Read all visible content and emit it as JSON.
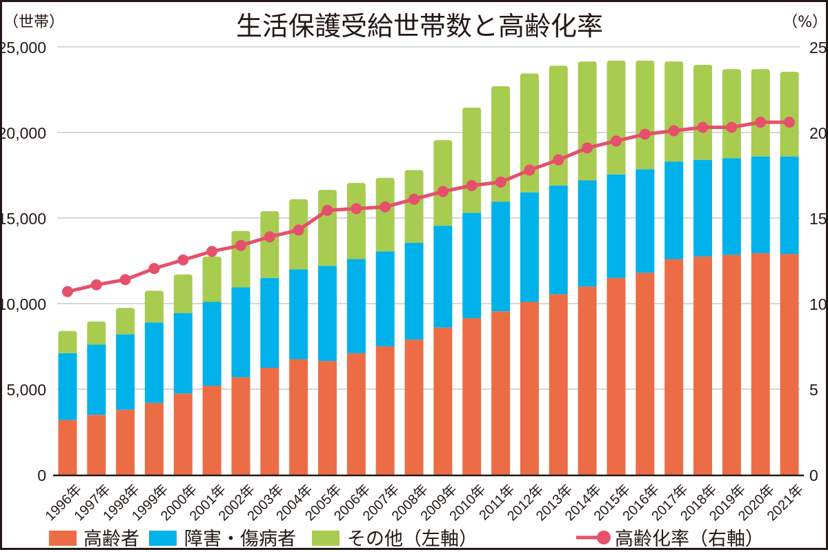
{
  "chart_data": {
    "type": "bar",
    "stacked": true,
    "title": "生活保護受給世帯数と高齢化率",
    "ylabel": "（世帯）",
    "y2label": "（%）",
    "ylim": [
      0,
      25000
    ],
    "y2lim": [
      0,
      25
    ],
    "yticks": [
      0,
      5000,
      10000,
      15000,
      20000,
      25000
    ],
    "ytick_labels": [
      "0",
      "5,000",
      "10,000",
      "15,000",
      "20,000",
      "25,000"
    ],
    "y2ticks": [
      0,
      5,
      10,
      15,
      20,
      25
    ],
    "y2tick_labels": [
      "0",
      "5",
      "10",
      "15",
      "20",
      "25"
    ],
    "grid": true,
    "legend_position": "bottom",
    "categories": [
      "1996年",
      "1997年",
      "1998年",
      "1999年",
      "2000年",
      "2001年",
      "2002年",
      "2003年",
      "2004年",
      "2005年",
      "2006年",
      "2007年",
      "2008年",
      "2009年",
      "2010年",
      "2011年",
      "2012年",
      "2013年",
      "2014年",
      "2015年",
      "2016年",
      "2017年",
      "2018年",
      "2019年",
      "2020年",
      "2021年"
    ],
    "series": [
      {
        "name": "高齢者",
        "type": "bar",
        "axis": "left",
        "color": "#EC6D45",
        "values": [
          3200,
          3500,
          3800,
          4200,
          4750,
          5200,
          5700,
          6250,
          6750,
          6650,
          7100,
          7500,
          7900,
          8600,
          9150,
          9550,
          10100,
          10550,
          11000,
          11500,
          11800,
          12600,
          12750,
          12850,
          12950,
          12900
        ]
      },
      {
        "name": "障害・傷病者",
        "type": "bar",
        "axis": "left",
        "color": "#00B1EA",
        "values": [
          3900,
          4100,
          4400,
          4700,
          4700,
          4900,
          5250,
          5250,
          5250,
          5550,
          5500,
          5550,
          5650,
          5950,
          6150,
          6400,
          6400,
          6350,
          6200,
          6050,
          6050,
          5700,
          5650,
          5650,
          5650,
          5700
        ]
      },
      {
        "name": "その他（左軸）",
        "type": "bar",
        "axis": "left",
        "color": "#A8CC50",
        "values": [
          1300,
          1350,
          1550,
          1850,
          2250,
          2650,
          3300,
          3900,
          4100,
          4450,
          4450,
          4300,
          4250,
          5000,
          6150,
          6750,
          6950,
          7000,
          6950,
          6650,
          6350,
          5850,
          5550,
          5200,
          5100,
          4950
        ]
      },
      {
        "name": "高齢化率（右軸）",
        "type": "line",
        "axis": "right",
        "color": "#E6506B",
        "values": [
          10.7,
          11.1,
          11.4,
          12.05,
          12.55,
          13.05,
          13.4,
          13.9,
          14.3,
          15.45,
          15.55,
          15.65,
          16.1,
          16.55,
          16.9,
          17.1,
          17.8,
          18.4,
          19.1,
          19.5,
          19.9,
          20.1,
          20.3,
          20.3,
          20.6,
          20.6
        ]
      }
    ]
  },
  "legend": {
    "items": [
      {
        "label": "高齢者",
        "color": "#EC6D45",
        "kind": "box"
      },
      {
        "label": "障害・傷病者",
        "color": "#00B1EA",
        "kind": "box"
      },
      {
        "label": "その他（左軸）",
        "color": "#A8CC50",
        "kind": "box"
      },
      {
        "label": "高齢化率（右軸）",
        "color": "#E6506B",
        "kind": "line-marker"
      }
    ]
  }
}
